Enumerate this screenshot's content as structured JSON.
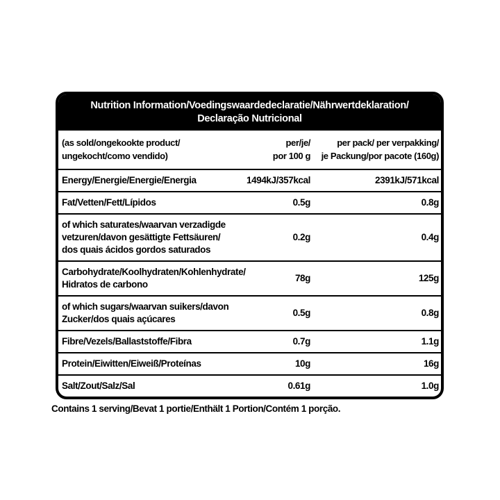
{
  "colors": {
    "ink": "#000000",
    "paper": "#ffffff"
  },
  "table": {
    "title_lines": [
      "Nutrition Information/Voedingswaardedeclaratie/Nährwertdeklaration/",
      "Declaração Nutricional"
    ],
    "col_headers": {
      "item_lines": [
        "(as sold/ongekookte product/",
        "ungekocht/como vendido)"
      ],
      "per_100_lines": [
        "per/je/",
        "por 100 g"
      ],
      "per_pack_lines": [
        "per pack/ per verpakking/",
        "je Packung/por pacote (160g)"
      ]
    },
    "rows": [
      {
        "label_lines": [
          "Energy/Energie/Energie/Energia"
        ],
        "per_100": "1494kJ/357kcal",
        "per_pack": "2391kJ/571kcal"
      },
      {
        "label_lines": [
          "Fat/Vetten/Fett/Lípidos"
        ],
        "per_100": "0.5g",
        "per_pack": "0.8g"
      },
      {
        "label_lines": [
          "of which saturates/waarvan verzadigde",
          "vetzuren/davon gesättigte Fettsäuren/",
          "dos quais ácidos gordos saturados"
        ],
        "per_100": "0.2g",
        "per_pack": "0.4g"
      },
      {
        "label_lines": [
          "Carbohydrate/Koolhydraten/Kohlenhydrate/",
          "Hidratos de carbono"
        ],
        "per_100": "78g",
        "per_pack": "125g"
      },
      {
        "label_lines": [
          "of which sugars/waarvan suikers/davon",
          "Zucker/dos quais açúcares"
        ],
        "per_100": "0.5g",
        "per_pack": "0.8g"
      },
      {
        "label_lines": [
          "Fibre/Vezels/Ballaststoffe/Fibra"
        ],
        "per_100": "0.7g",
        "per_pack": "1.1g"
      },
      {
        "label_lines": [
          "Protein/Eiwitten/Eiweiß/Proteínas"
        ],
        "per_100": "10g",
        "per_pack": "16g"
      },
      {
        "label_lines": [
          "Salt/Zout/Salz/Sal"
        ],
        "per_100": "0.61g",
        "per_pack": "1.0g"
      }
    ],
    "footnote": "Contains 1 serving/Bevat 1 portie/Enthält 1 Portion/Contém 1 porção."
  }
}
